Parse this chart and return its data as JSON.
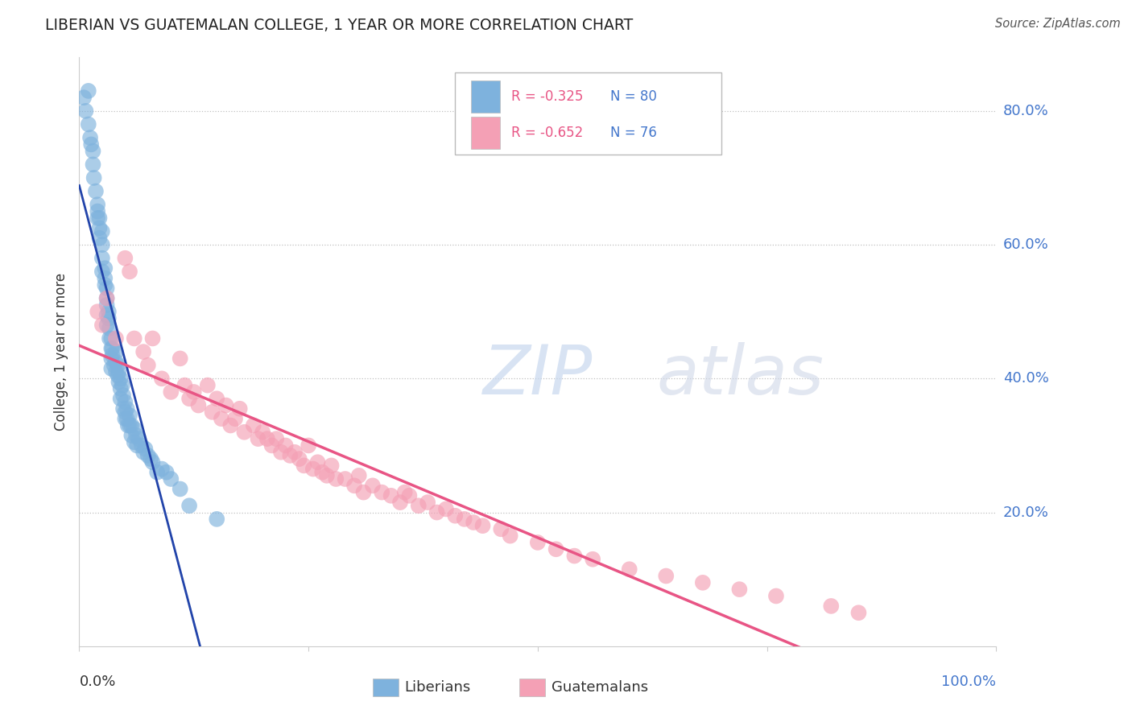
{
  "title": "LIBERIAN VS GUATEMALAN COLLEGE, 1 YEAR OR MORE CORRELATION CHART",
  "source": "Source: ZipAtlas.com",
  "ylabel": "College, 1 year or more",
  "xlim": [
    0,
    1.0
  ],
  "ylim": [
    0,
    0.88
  ],
  "yticks": [
    0.2,
    0.4,
    0.6,
    0.8
  ],
  "ytick_labels": [
    "20.0%",
    "40.0%",
    "60.0%",
    "80.0%"
  ],
  "liberian_R": "-0.325",
  "liberian_N": "80",
  "guatemalan_R": "-0.652",
  "guatemalan_N": "76",
  "liberian_color": "#7EB2DD",
  "guatemalan_color": "#F4A0B5",
  "liberian_line_color": "#2244AA",
  "liberian_dash_color": "#AABBDD",
  "guatemalan_line_color": "#E85585",
  "watermark_zip": "ZIP",
  "watermark_atlas": "atlas",
  "legend_R_color": "#E85585",
  "legend_N_color": "#4477CC",
  "liberian_x": [
    0.005,
    0.007,
    0.01,
    0.01,
    0.012,
    0.013,
    0.015,
    0.015,
    0.016,
    0.018,
    0.02,
    0.02,
    0.022,
    0.022,
    0.022,
    0.025,
    0.025,
    0.025,
    0.025,
    0.028,
    0.028,
    0.028,
    0.03,
    0.03,
    0.03,
    0.03,
    0.03,
    0.032,
    0.032,
    0.033,
    0.033,
    0.035,
    0.035,
    0.035,
    0.035,
    0.036,
    0.036,
    0.038,
    0.04,
    0.04,
    0.04,
    0.042,
    0.042,
    0.043,
    0.043,
    0.045,
    0.045,
    0.045,
    0.047,
    0.048,
    0.048,
    0.05,
    0.05,
    0.05,
    0.052,
    0.052,
    0.053,
    0.055,
    0.055,
    0.057,
    0.057,
    0.06,
    0.06,
    0.062,
    0.063,
    0.065,
    0.068,
    0.07,
    0.072,
    0.075,
    0.078,
    0.08,
    0.085,
    0.09,
    0.095,
    0.1,
    0.11,
    0.12,
    0.15,
    0.02
  ],
  "liberian_y": [
    0.82,
    0.8,
    0.83,
    0.78,
    0.76,
    0.75,
    0.72,
    0.74,
    0.7,
    0.68,
    0.66,
    0.64,
    0.64,
    0.625,
    0.61,
    0.62,
    0.6,
    0.58,
    0.56,
    0.565,
    0.55,
    0.54,
    0.535,
    0.52,
    0.51,
    0.495,
    0.48,
    0.5,
    0.49,
    0.475,
    0.46,
    0.46,
    0.445,
    0.43,
    0.415,
    0.445,
    0.435,
    0.42,
    0.44,
    0.425,
    0.41,
    0.42,
    0.405,
    0.41,
    0.395,
    0.4,
    0.385,
    0.37,
    0.39,
    0.375,
    0.355,
    0.365,
    0.35,
    0.34,
    0.355,
    0.34,
    0.33,
    0.345,
    0.33,
    0.33,
    0.315,
    0.325,
    0.305,
    0.315,
    0.3,
    0.31,
    0.3,
    0.29,
    0.295,
    0.285,
    0.28,
    0.275,
    0.26,
    0.265,
    0.26,
    0.25,
    0.235,
    0.21,
    0.19,
    0.65
  ],
  "guatemalan_x": [
    0.02,
    0.025,
    0.03,
    0.04,
    0.05,
    0.055,
    0.06,
    0.07,
    0.075,
    0.08,
    0.09,
    0.1,
    0.11,
    0.115,
    0.12,
    0.125,
    0.13,
    0.14,
    0.145,
    0.15,
    0.155,
    0.16,
    0.165,
    0.17,
    0.175,
    0.18,
    0.19,
    0.195,
    0.2,
    0.205,
    0.21,
    0.215,
    0.22,
    0.225,
    0.23,
    0.235,
    0.24,
    0.245,
    0.25,
    0.255,
    0.26,
    0.265,
    0.27,
    0.275,
    0.28,
    0.29,
    0.3,
    0.305,
    0.31,
    0.32,
    0.33,
    0.34,
    0.35,
    0.355,
    0.36,
    0.37,
    0.38,
    0.39,
    0.4,
    0.41,
    0.42,
    0.43,
    0.44,
    0.46,
    0.47,
    0.5,
    0.52,
    0.54,
    0.56,
    0.6,
    0.64,
    0.68,
    0.72,
    0.76,
    0.82,
    0.85
  ],
  "guatemalan_y": [
    0.5,
    0.48,
    0.52,
    0.46,
    0.58,
    0.56,
    0.46,
    0.44,
    0.42,
    0.46,
    0.4,
    0.38,
    0.43,
    0.39,
    0.37,
    0.38,
    0.36,
    0.39,
    0.35,
    0.37,
    0.34,
    0.36,
    0.33,
    0.34,
    0.355,
    0.32,
    0.33,
    0.31,
    0.32,
    0.31,
    0.3,
    0.31,
    0.29,
    0.3,
    0.285,
    0.29,
    0.28,
    0.27,
    0.3,
    0.265,
    0.275,
    0.26,
    0.255,
    0.27,
    0.25,
    0.25,
    0.24,
    0.255,
    0.23,
    0.24,
    0.23,
    0.225,
    0.215,
    0.23,
    0.225,
    0.21,
    0.215,
    0.2,
    0.205,
    0.195,
    0.19,
    0.185,
    0.18,
    0.175,
    0.165,
    0.155,
    0.145,
    0.135,
    0.13,
    0.115,
    0.105,
    0.095,
    0.085,
    0.075,
    0.06,
    0.05
  ]
}
